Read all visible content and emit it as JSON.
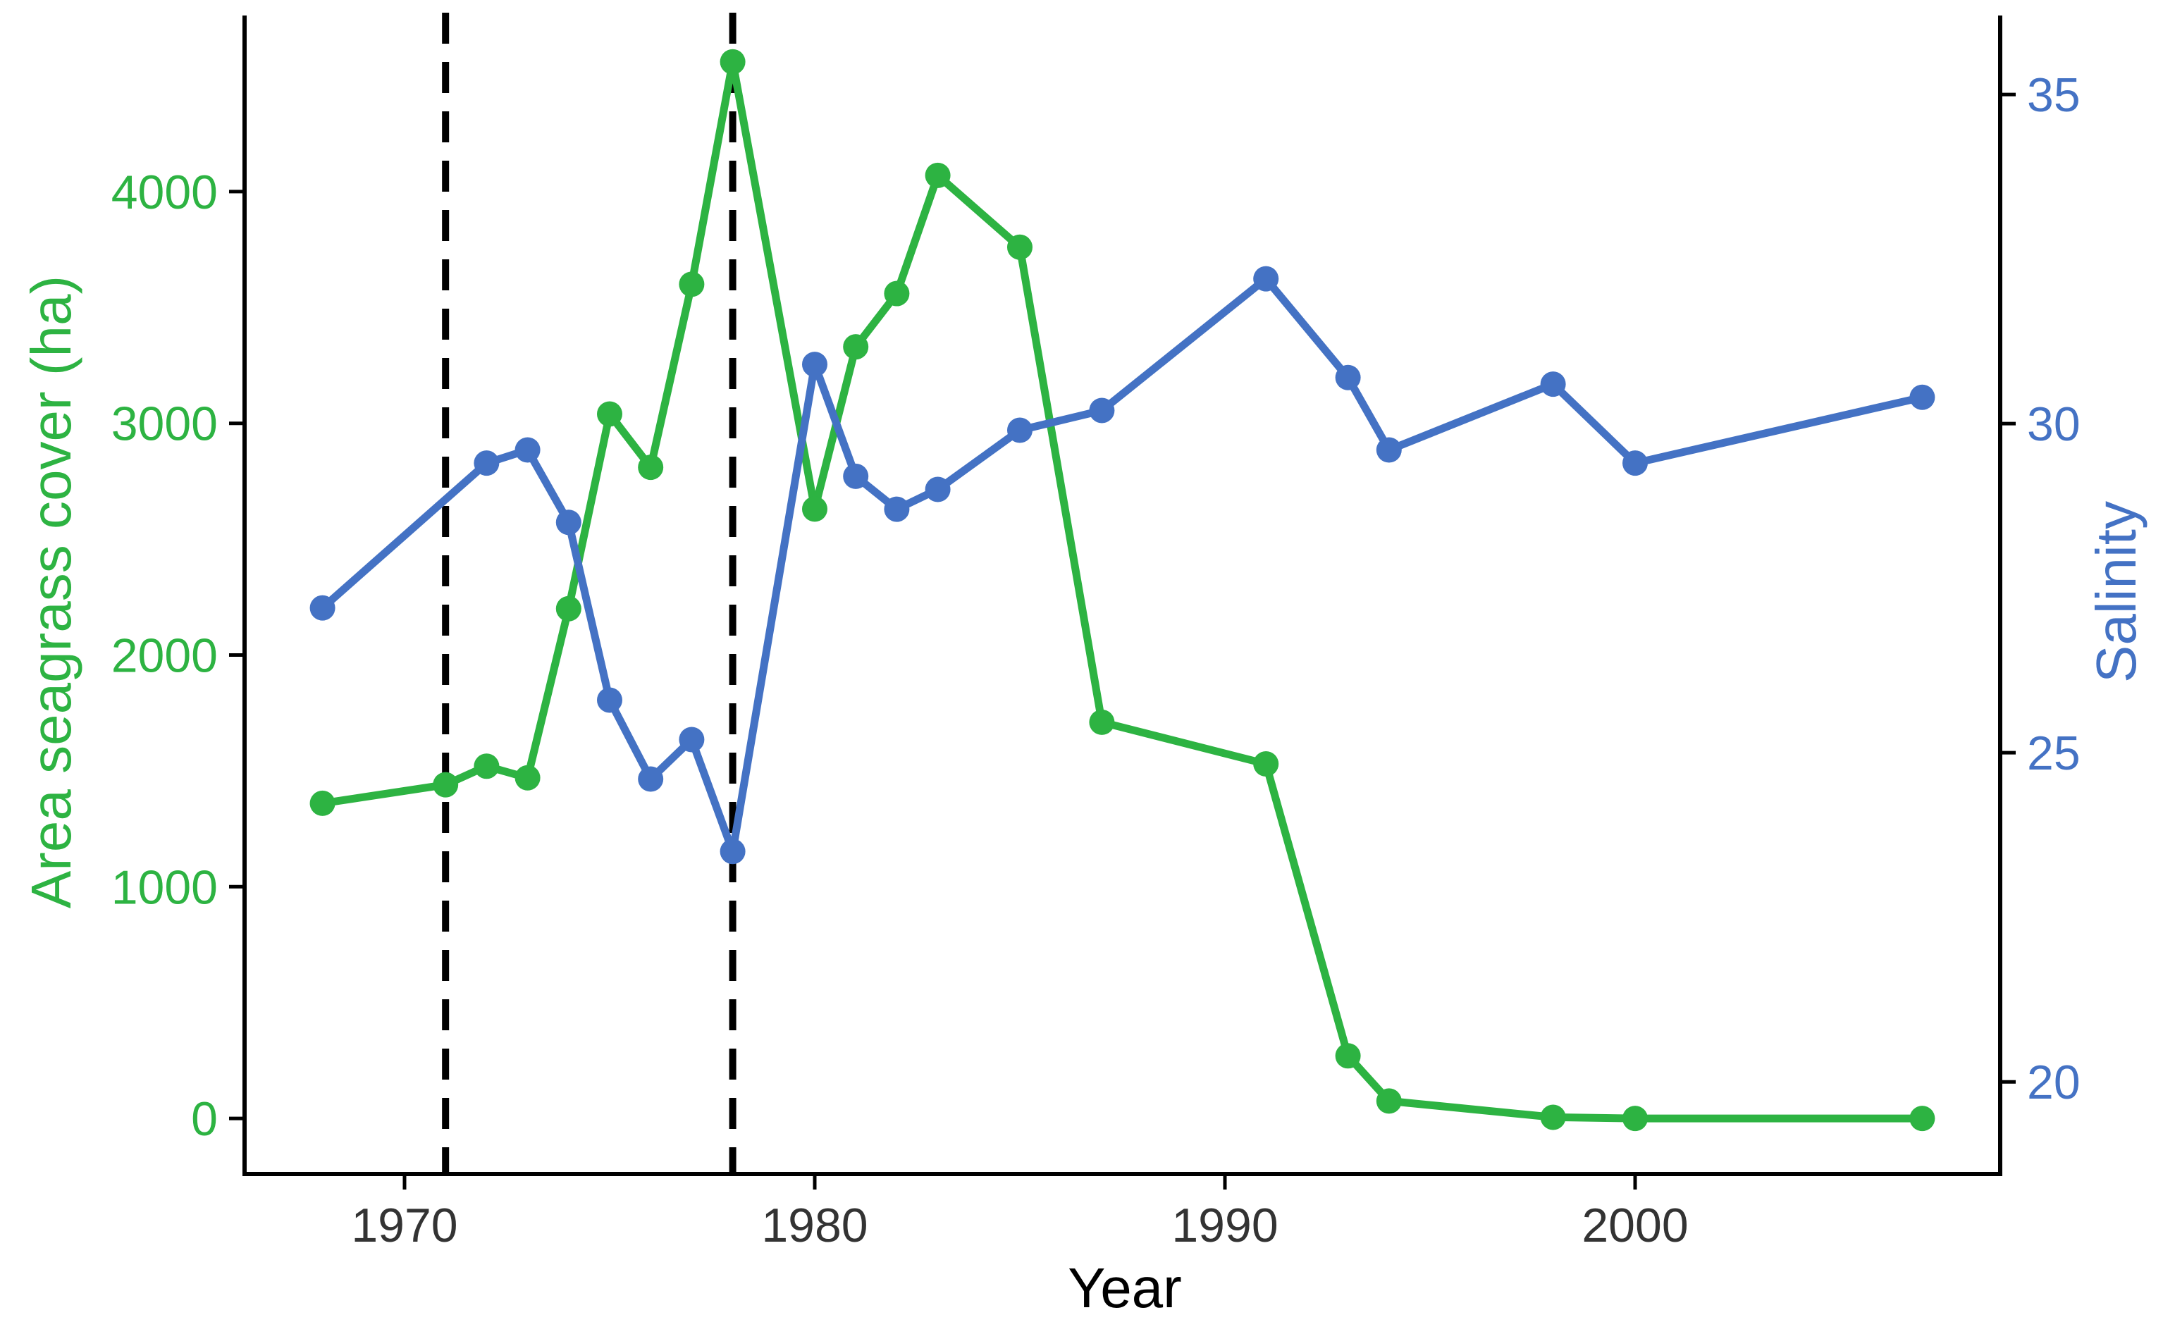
{
  "chart_data": {
    "type": "line",
    "title": "",
    "xlabel": "Year",
    "ylabel": "Area seagrass cover (ha)",
    "y2label": "Salinity",
    "xlim": [
      1966.1,
      2008.9
    ],
    "ylim": [
      -240,
      4760
    ],
    "y2lim": [
      18.6,
      36.2
    ],
    "x_ticks": [
      1970,
      1980,
      1990,
      2000
    ],
    "y_ticks": [
      0,
      1000,
      2000,
      3000,
      4000
    ],
    "y2_ticks": [
      20,
      25,
      30,
      35
    ],
    "vlines": [
      1971,
      1978
    ],
    "grid": false,
    "legend": "none",
    "colors": {
      "seagrass": "#2db342",
      "salinity": "#4472c4",
      "vline": "#000000",
      "axis": "#000000"
    },
    "series": [
      {
        "axis": "left",
        "color": "#2db342",
        "x": [
          1968,
          1971,
          1972,
          1973,
          1974,
          1975,
          1976,
          1977,
          1978,
          1980,
          1981,
          1982,
          1983,
          1985,
          1987,
          1991,
          1993,
          1994,
          1998,
          2000,
          2007
        ],
        "values": [
          1360,
          1440,
          1520,
          1470,
          2200,
          3040,
          2810,
          3600,
          4560,
          2630,
          3330,
          3560,
          4070,
          3760,
          1710,
          1530,
          270,
          75,
          5,
          0,
          0
        ]
      },
      {
        "axis": "right",
        "color": "#4472c4",
        "x": [
          1968,
          1972,
          1973,
          1974,
          1975,
          1976,
          1977,
          1978,
          1980,
          1981,
          1982,
          1983,
          1985,
          1987,
          1991,
          1993,
          1994,
          1998,
          2000,
          2007
        ],
        "values": [
          27.2,
          29.4,
          29.6,
          28.5,
          25.8,
          24.6,
          25.2,
          23.5,
          30.9,
          29.2,
          28.7,
          29.0,
          29.9,
          30.2,
          32.2,
          30.7,
          29.6,
          30.6,
          29.4,
          30.4
        ]
      }
    ]
  }
}
